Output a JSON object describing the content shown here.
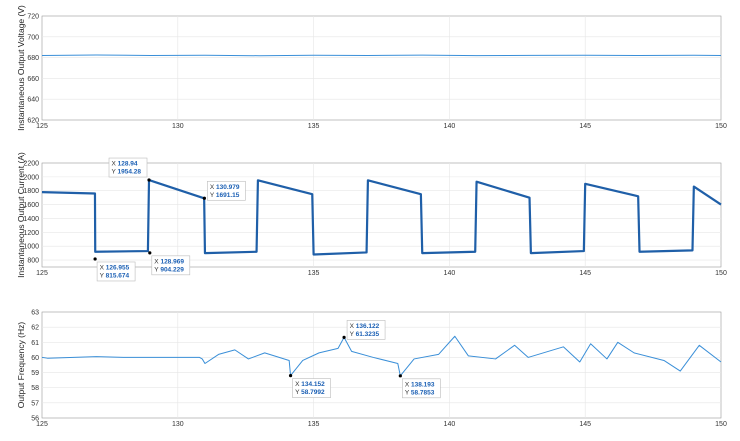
{
  "chart_data": [
    {
      "type": "line",
      "ylabel": "Instantaneous Output Voltage (V)",
      "xlim": [
        125,
        150
      ],
      "ylim": [
        620,
        720
      ],
      "xticks": [
        125,
        130,
        135,
        140,
        145,
        150
      ],
      "yticks": [
        620,
        640,
        660,
        680,
        700,
        720
      ],
      "grid": true,
      "color": "#3a8fd8",
      "series": [
        {
          "x": [
            125,
            127,
            129,
            131,
            133,
            135,
            137,
            139,
            141,
            143,
            145,
            147,
            149,
            150
          ],
          "values": [
            682,
            682.5,
            682,
            682.3,
            681.8,
            682.2,
            682,
            682.4,
            681.9,
            682.1,
            682.3,
            682,
            682.2,
            682
          ]
        }
      ],
      "annotations": []
    },
    {
      "type": "line",
      "ylabel": "Instantaneous Output Current (A)",
      "xlim": [
        125,
        150
      ],
      "ylim": [
        700,
        2200
      ],
      "xticks": [
        125,
        130,
        135,
        140,
        145,
        150
      ],
      "yticks": [
        800,
        1000,
        1200,
        1400,
        1600,
        1800,
        2000,
        2200
      ],
      "grid": true,
      "color": "#1f5fa8",
      "series": [
        {
          "x": [
            125,
            126.95,
            126.96,
            128.9,
            128.94,
            130.97,
            131.0,
            132.9,
            132.95,
            134.95,
            135.0,
            136.95,
            137.0,
            138.95,
            139.0,
            140.95,
            141.0,
            142.95,
            143.0,
            144.95,
            145.0,
            146.95,
            147.0,
            148.95,
            149.0,
            150
          ],
          "values": [
            1780,
            1760,
            920,
            930,
            1954,
            1691,
            900,
            920,
            1950,
            1750,
            880,
            910,
            1950,
            1750,
            900,
            920,
            1930,
            1700,
            900,
            930,
            1900,
            1720,
            920,
            940,
            1860,
            1600
          ]
        }
      ],
      "annotations": [
        {
          "x_label": "X",
          "x_value": "126.955",
          "y_label": "Y",
          "y_value": "815.674",
          "x": 126.955,
          "y": 815.674,
          "box_side": "below-right"
        },
        {
          "x_label": "X",
          "x_value": "128.94",
          "y_label": "Y",
          "y_value": "1954.28",
          "x": 128.94,
          "y": 1954.28,
          "box_side": "above-left"
        },
        {
          "x_label": "X",
          "x_value": "128.969",
          "y_label": "Y",
          "y_value": "904.229",
          "x": 128.969,
          "y": 904.229,
          "box_side": "below-right"
        },
        {
          "x_label": "X",
          "x_value": "130.979",
          "y_label": "Y",
          "y_value": "1691.15",
          "x": 130.979,
          "y": 1691.15,
          "box_side": "above-right"
        }
      ]
    },
    {
      "type": "line",
      "ylabel": "Output Frequency (Hz)",
      "xlim": [
        125,
        150
      ],
      "ylim": [
        56,
        63
      ],
      "xticks": [
        125,
        130,
        135,
        140,
        145,
        150
      ],
      "yticks": [
        56,
        57,
        58,
        59,
        60,
        61,
        62,
        63
      ],
      "grid": true,
      "color": "#3a8fd8",
      "series": [
        {
          "x": [
            125,
            125.2,
            127,
            128,
            130.8,
            130.9,
            131.0,
            131.5,
            132.1,
            132.6,
            133.2,
            134.1,
            134.152,
            134.6,
            135.2,
            135.9,
            136.122,
            136.4,
            137.2,
            138.1,
            138.193,
            138.7,
            139.6,
            140.2,
            140.7,
            141.7,
            142.4,
            142.9,
            144.2,
            144.8,
            145.2,
            145.8,
            146.2,
            146.8,
            147.9,
            148.5,
            149.2,
            150
          ],
          "values": [
            60.0,
            59.95,
            60.05,
            60.0,
            60.0,
            59.9,
            59.6,
            60.2,
            60.5,
            59.9,
            60.3,
            59.8,
            58.7992,
            59.8,
            60.3,
            60.6,
            61.3235,
            60.4,
            60.0,
            59.6,
            58.7853,
            59.9,
            60.2,
            61.4,
            60.1,
            59.9,
            60.8,
            60.0,
            60.7,
            59.7,
            60.9,
            59.9,
            61.0,
            60.3,
            59.8,
            59.1,
            60.8,
            59.7
          ]
        }
      ],
      "annotations": [
        {
          "x_label": "X",
          "x_value": "134.152",
          "y_label": "Y",
          "y_value": "58.7992",
          "x": 134.152,
          "y": 58.7992,
          "box_side": "below-right"
        },
        {
          "x_label": "X",
          "x_value": "136.122",
          "y_label": "Y",
          "y_value": "61.3235",
          "x": 136.122,
          "y": 61.3235,
          "box_side": "above-right"
        },
        {
          "x_label": "X",
          "x_value": "138.193",
          "y_label": "Y",
          "y_value": "58.7853",
          "x": 138.193,
          "y": 58.7853,
          "box_side": "below-right"
        }
      ]
    }
  ]
}
